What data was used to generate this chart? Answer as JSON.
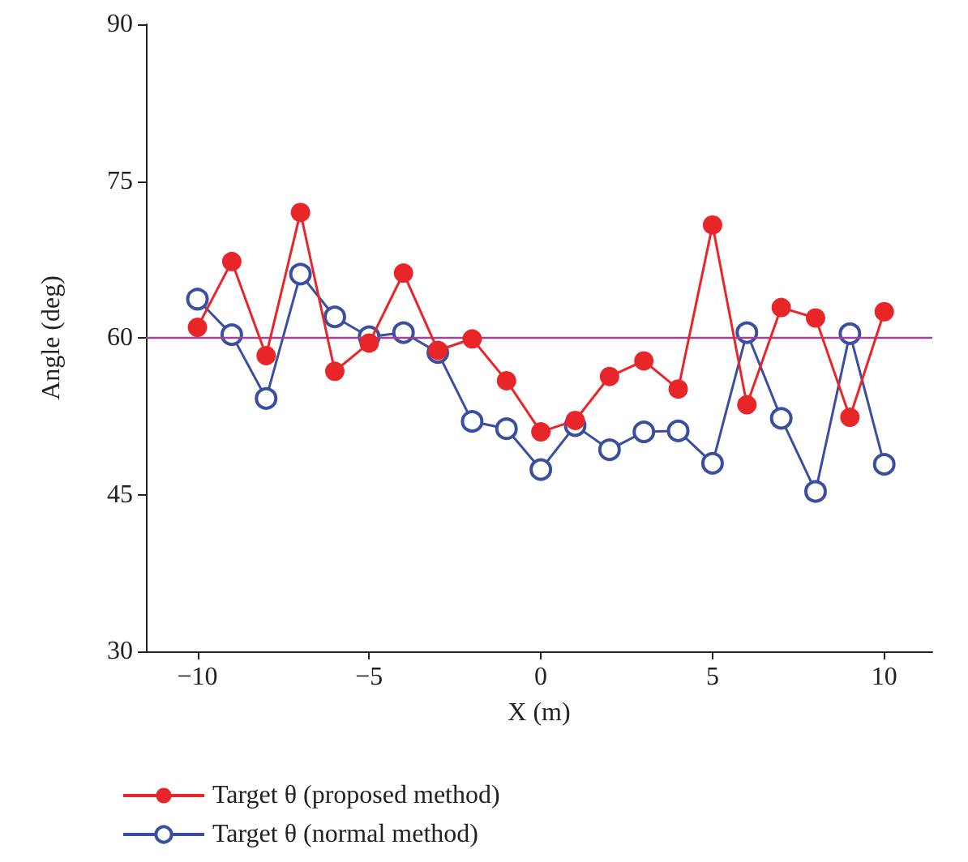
{
  "chart_data": {
    "type": "line",
    "xlabel": "X (m)",
    "ylabel": "Angle (deg)",
    "x": [
      -10,
      -9,
      -8,
      -7,
      -6,
      -5,
      -4,
      -3,
      -2,
      -1,
      0,
      1,
      2,
      3,
      4,
      5,
      6,
      7,
      8,
      9,
      10
    ],
    "series": [
      {
        "name": "Target θ (proposed method)",
        "color": "#e8262a",
        "values": [
          61.0,
          67.3,
          58.3,
          72.0,
          56.8,
          59.5,
          66.2,
          58.8,
          59.9,
          55.9,
          51.0,
          52.1,
          56.3,
          57.8,
          55.1,
          70.8,
          53.6,
          62.9,
          61.9,
          52.4,
          62.5
        ]
      },
      {
        "name": "Target θ (normal method)",
        "color": "#3a4fa0",
        "values": [
          63.7,
          60.3,
          54.2,
          66.1,
          62.0,
          60.1,
          60.5,
          58.6,
          52.0,
          51.3,
          47.4,
          51.6,
          49.3,
          51.0,
          51.1,
          48.0,
          60.5,
          52.3,
          45.3,
          60.4,
          47.9
        ]
      }
    ],
    "xlim": [
      -11.5,
      11.4
    ],
    "xticks": [
      -10,
      -5,
      0,
      5,
      10
    ],
    "ylim": [
      30,
      90
    ],
    "yticks": [
      30,
      45,
      60,
      75,
      90
    ],
    "ref_lines": [
      {
        "axis": "y",
        "value": 60.1,
        "color": "#a0429a"
      }
    ],
    "grid": false,
    "legend": "bottom left",
    "marker": "circle",
    "line_style": "solid"
  }
}
